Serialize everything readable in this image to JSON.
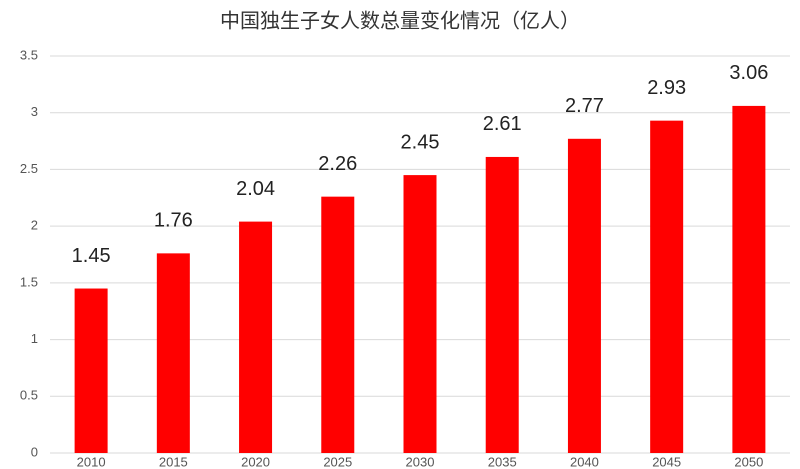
{
  "chart_data": {
    "type": "bar",
    "title": "中国独生子女人数总量变化情况（亿人）",
    "categories": [
      "2010",
      "2015",
      "2020",
      "2025",
      "2030",
      "2035",
      "2040",
      "2045",
      "2050"
    ],
    "values": [
      1.45,
      1.76,
      2.04,
      2.26,
      2.45,
      2.61,
      2.77,
      2.93,
      3.06
    ],
    "color": "#ff0000",
    "ylim": [
      0,
      3.5
    ],
    "yticks": [
      0,
      0.5,
      1,
      1.5,
      2,
      2.5,
      3,
      3.5
    ],
    "grid": true
  }
}
